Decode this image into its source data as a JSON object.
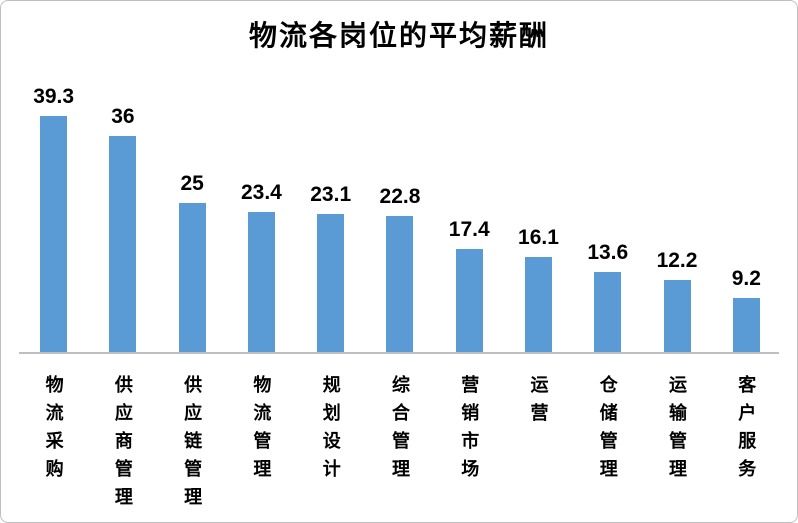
{
  "chart_data": {
    "type": "bar",
    "title": "物流各岗位的平均薪酬",
    "categories": [
      "物流采购",
      "供应商管理",
      "供应链管理",
      "物流管理",
      "规划设计",
      "综合管理",
      "营销市场",
      "运营",
      "仓储管理",
      "运输管理",
      "客户服务"
    ],
    "values": [
      39.3,
      36,
      25,
      23.4,
      23.1,
      22.8,
      17.4,
      16.1,
      13.6,
      12.2,
      9.2
    ],
    "xlabel": "",
    "ylabel": "",
    "ylim": [
      0,
      40
    ],
    "grid": false,
    "legend": false,
    "value_labels_shown": true,
    "bar_color": "#5b9bd5",
    "axis_line_color": "#bfbfbf",
    "title_color": "#000000",
    "label_color": "#000000"
  }
}
